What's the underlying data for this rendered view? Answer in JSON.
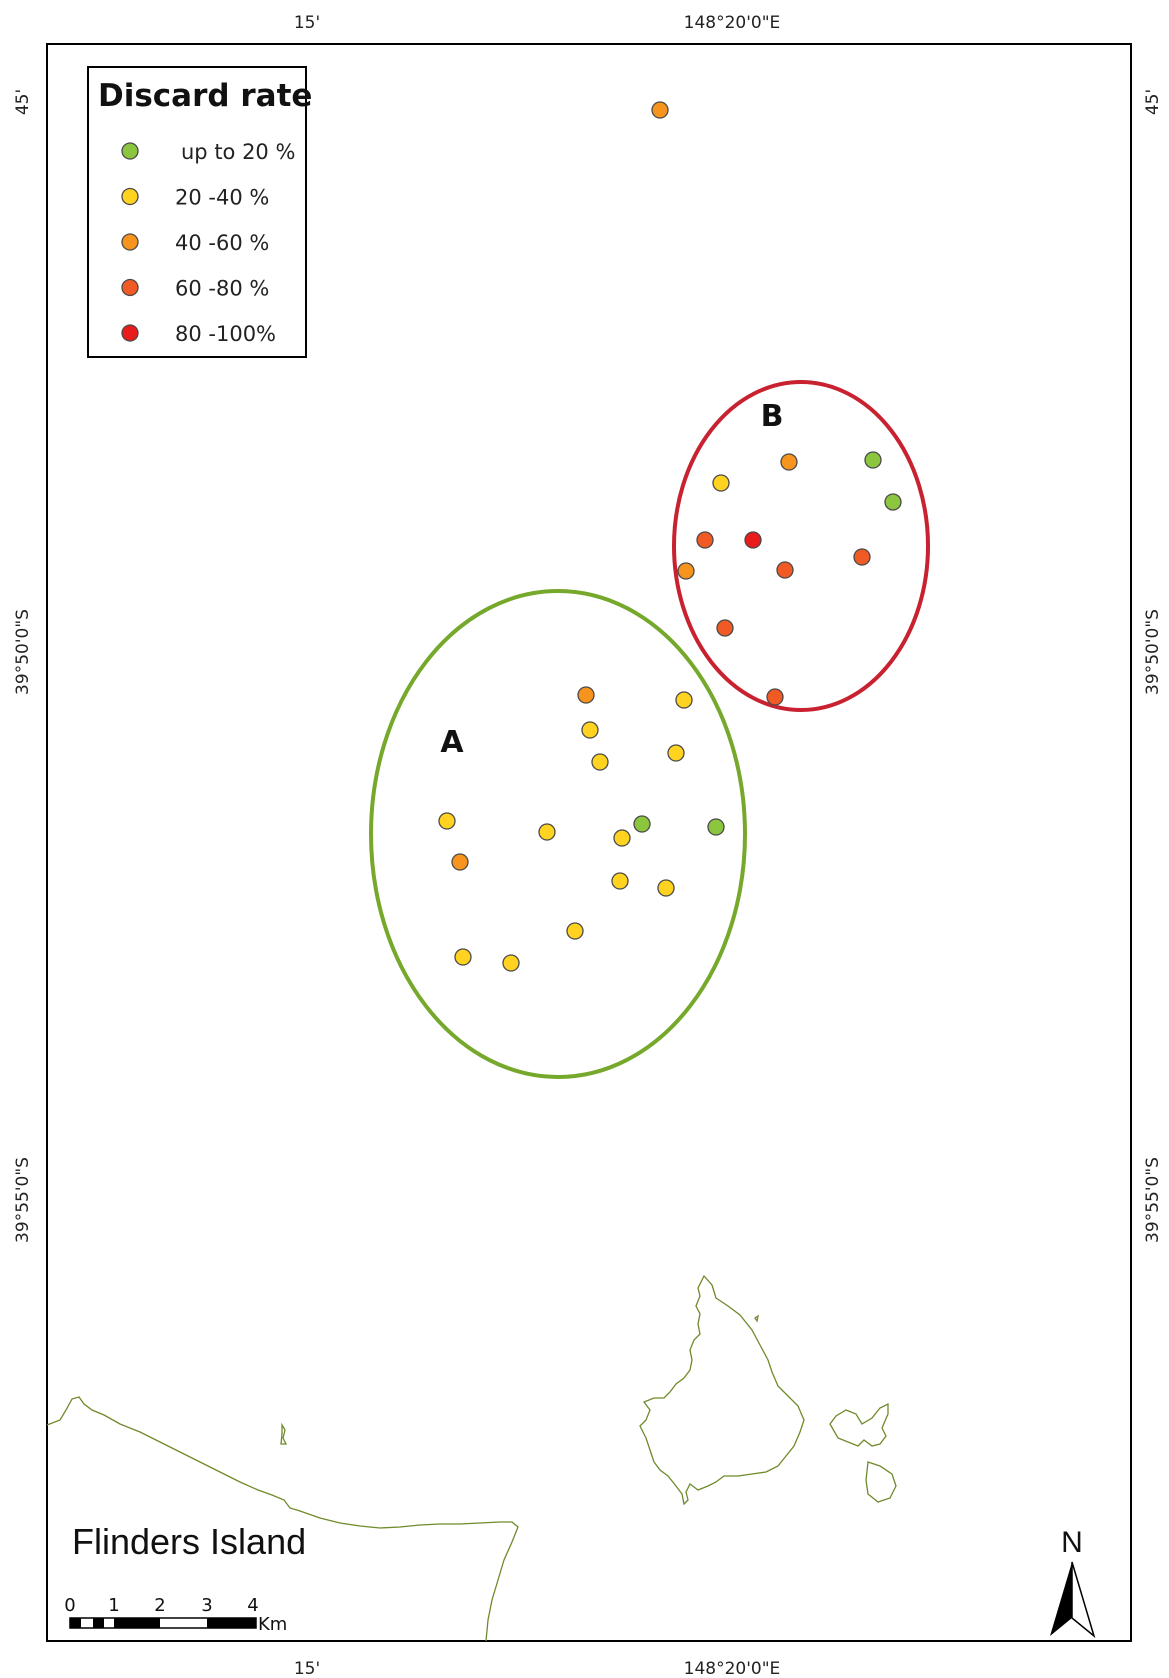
{
  "map": {
    "top_ticks": [
      "15'",
      "148°20'0\"E"
    ],
    "bottom_ticks": [
      "15'",
      "148°20'0\"E"
    ],
    "left_ticks": [
      "45'",
      "39°50'0\"S",
      "39°55'0\"S"
    ],
    "right_ticks": [
      "45'",
      "39°50'0\"S",
      "39°55'0\"S"
    ],
    "place_label": "Flinders Island",
    "land_color": "#6f8a2a"
  },
  "legend": {
    "title": "Discard rate",
    "items": [
      {
        "label": "up to 20 %",
        "color": "#8cc63e"
      },
      {
        "label": "20 -40 %",
        "color": "#ffd31f"
      },
      {
        "label": "40 -60 %",
        "color": "#f7941d"
      },
      {
        "label": "60 -80 %",
        "color": "#f15a24"
      },
      {
        "label": "80 -100%",
        "color": "#e81c1c"
      }
    ]
  },
  "clusters": [
    {
      "label": "A",
      "color": "#76a82c"
    },
    {
      "label": "B",
      "color": "#c8212f"
    }
  ],
  "scale_bar": {
    "labels": [
      "0",
      "1",
      "2",
      "3",
      "4"
    ],
    "unit": "Km"
  },
  "north_arrow": {
    "label": "N",
    "icon": "north-arrow-icon"
  },
  "samples": [
    {
      "cls": 2
    },
    {
      "cls": 0
    },
    {
      "cls": 2
    },
    {
      "cls": 0
    },
    {
      "cls": 1
    },
    {
      "cls": 3
    },
    {
      "cls": 4
    },
    {
      "cls": 2
    },
    {
      "cls": 3
    },
    {
      "cls": 3
    },
    {
      "cls": 3
    },
    {
      "cls": 3
    },
    {
      "cls": 2
    },
    {
      "cls": 1
    },
    {
      "cls": 1
    },
    {
      "cls": 1
    },
    {
      "cls": 1
    },
    {
      "cls": 1
    },
    {
      "cls": 1
    },
    {
      "cls": 1
    },
    {
      "cls": 0
    },
    {
      "cls": 0
    },
    {
      "cls": 2
    },
    {
      "cls": 1
    },
    {
      "cls": 1
    },
    {
      "cls": 1
    },
    {
      "cls": 1
    },
    {
      "cls": 1
    }
  ]
}
